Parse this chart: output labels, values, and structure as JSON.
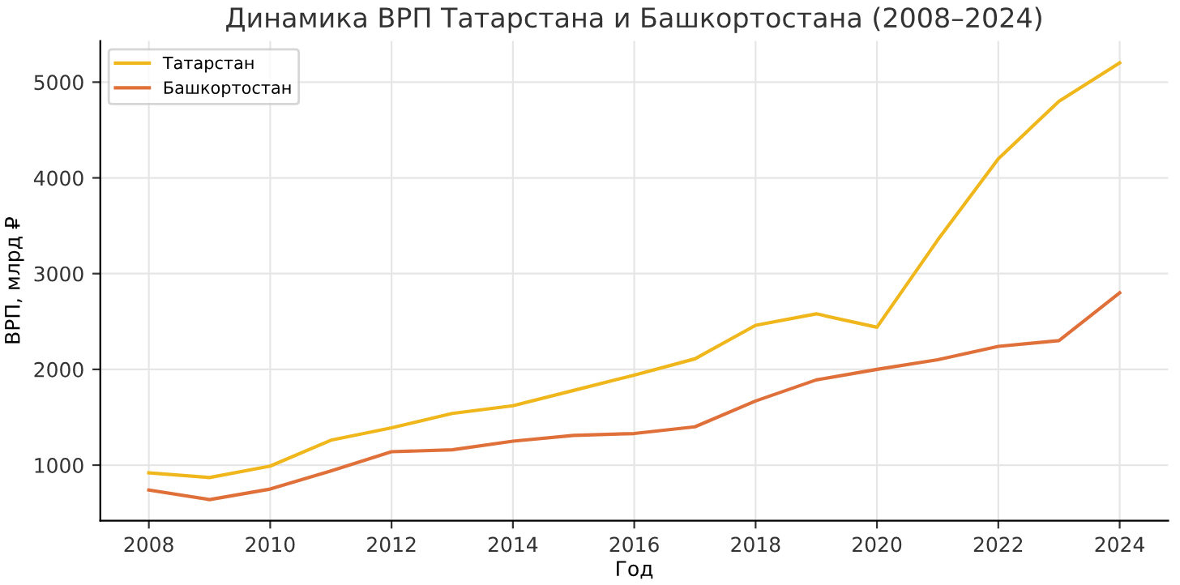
{
  "chart_data": {
    "type": "line",
    "title": "Динамика ВРП Татарстана и Башкортостана (2008–2024)",
    "xlabel": "Год",
    "ylabel": "ВРП, млрд ₽",
    "x": [
      2008,
      2009,
      2010,
      2011,
      2012,
      2013,
      2014,
      2015,
      2016,
      2017,
      2018,
      2019,
      2020,
      2021,
      2022,
      2023,
      2024
    ],
    "series": [
      {
        "name": "Татарстан",
        "color": "#f0b71c",
        "values": [
          920,
          870,
          990,
          1260,
          1390,
          1540,
          1620,
          1780,
          1940,
          2110,
          2460,
          2580,
          2440,
          3350,
          4200,
          4800,
          5200
        ]
      },
      {
        "name": "Башкортостан",
        "color": "#e0703a",
        "values": [
          740,
          640,
          750,
          940,
          1140,
          1160,
          1250,
          1310,
          1330,
          1400,
          1670,
          1890,
          2000,
          2100,
          2240,
          2300,
          2800
        ]
      }
    ],
    "xlim": [
      2007.2,
      2024.8
    ],
    "ylim": [
      420,
      5430
    ],
    "xticks": [
      2008,
      2010,
      2012,
      2014,
      2016,
      2018,
      2020,
      2022,
      2024
    ],
    "yticks": [
      1000,
      2000,
      3000,
      4000,
      5000
    ],
    "grid": true,
    "legend": "top left",
    "marker": "none",
    "line_style": "solid"
  }
}
